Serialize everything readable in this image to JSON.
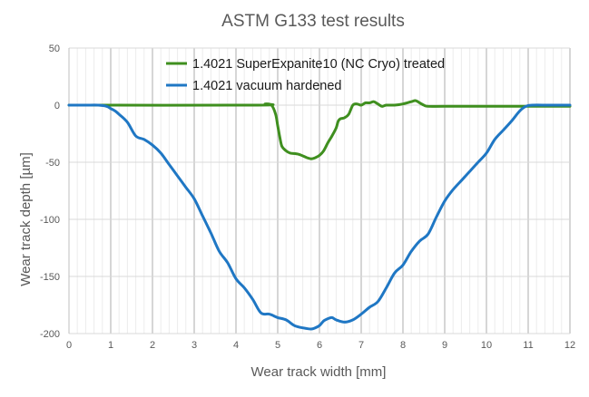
{
  "chart_data": {
    "type": "line",
    "title": "ASTM G133 test results",
    "xlabel": "Wear track width [mm]",
    "ylabel": "Wear track depth [µm]",
    "xlim": [
      0,
      12
    ],
    "ylim": [
      -200,
      50
    ],
    "x_ticks": [
      0,
      1,
      2,
      3,
      4,
      5,
      6,
      7,
      8,
      9,
      10,
      11,
      12
    ],
    "y_ticks": [
      -200,
      -150,
      -100,
      -50,
      0,
      50
    ],
    "grid": true,
    "minor_x_grid_step": 0.2,
    "legend_position": "top-center",
    "series": [
      {
        "name": "1.4021 SuperExpanite10 (NC Cryo) treated",
        "color": "#3f8f1f",
        "x": [
          0,
          4.5,
          4.7,
          4.85,
          4.95,
          5.0,
          5.05,
          5.1,
          5.2,
          5.3,
          5.5,
          5.7,
          5.8,
          5.9,
          6.0,
          6.1,
          6.2,
          6.3,
          6.4,
          6.45,
          6.5,
          6.6,
          6.7,
          6.8,
          6.9,
          7.0,
          7.1,
          7.2,
          7.3,
          7.4,
          7.5,
          7.6,
          7.8,
          8.0,
          8.2,
          8.3,
          8.4,
          8.5,
          8.6,
          9.0,
          10.0,
          11.0,
          12.0
        ],
        "values": [
          0,
          0,
          1,
          0,
          -8,
          -18,
          -28,
          -36,
          -40,
          -42,
          -43,
          -46,
          -47,
          -46,
          -44,
          -40,
          -33,
          -27,
          -20,
          -14,
          -12,
          -11,
          -8,
          0,
          1,
          0,
          2,
          2,
          3,
          1,
          -1,
          0,
          0,
          1,
          3,
          4,
          2,
          0,
          -1,
          -1,
          -1,
          -1,
          -1
        ]
      },
      {
        "name": "1.4021 vacuum hardened",
        "color": "#1f77c4",
        "x": [
          0,
          0.4,
          0.7,
          0.9,
          1.0,
          1.1,
          1.2,
          1.4,
          1.6,
          1.8,
          2.0,
          2.2,
          2.4,
          2.6,
          2.8,
          3.0,
          3.2,
          3.4,
          3.6,
          3.8,
          4.0,
          4.2,
          4.4,
          4.6,
          4.8,
          5.0,
          5.2,
          5.4,
          5.6,
          5.8,
          5.9,
          6.0,
          6.1,
          6.2,
          6.3,
          6.4,
          6.6,
          6.8,
          7.0,
          7.2,
          7.4,
          7.6,
          7.8,
          8.0,
          8.2,
          8.4,
          8.6,
          8.8,
          9.0,
          9.2,
          9.4,
          9.6,
          9.8,
          10.0,
          10.2,
          10.4,
          10.6,
          10.8,
          10.95,
          11.1,
          11.5,
          12.0
        ],
        "values": [
          0,
          0,
          0,
          -1,
          -3,
          -5,
          -8,
          -15,
          -27,
          -30,
          -35,
          -42,
          -52,
          -62,
          -72,
          -82,
          -97,
          -112,
          -128,
          -138,
          -152,
          -160,
          -170,
          -182,
          -183,
          -186,
          -188,
          -193,
          -195,
          -196,
          -195,
          -193,
          -189,
          -187,
          -186,
          -188,
          -190,
          -188,
          -183,
          -177,
          -172,
          -160,
          -147,
          -140,
          -128,
          -119,
          -113,
          -98,
          -84,
          -74,
          -66,
          -58,
          -50,
          -42,
          -30,
          -22,
          -14,
          -5,
          -1,
          0,
          0,
          0
        ]
      }
    ]
  }
}
